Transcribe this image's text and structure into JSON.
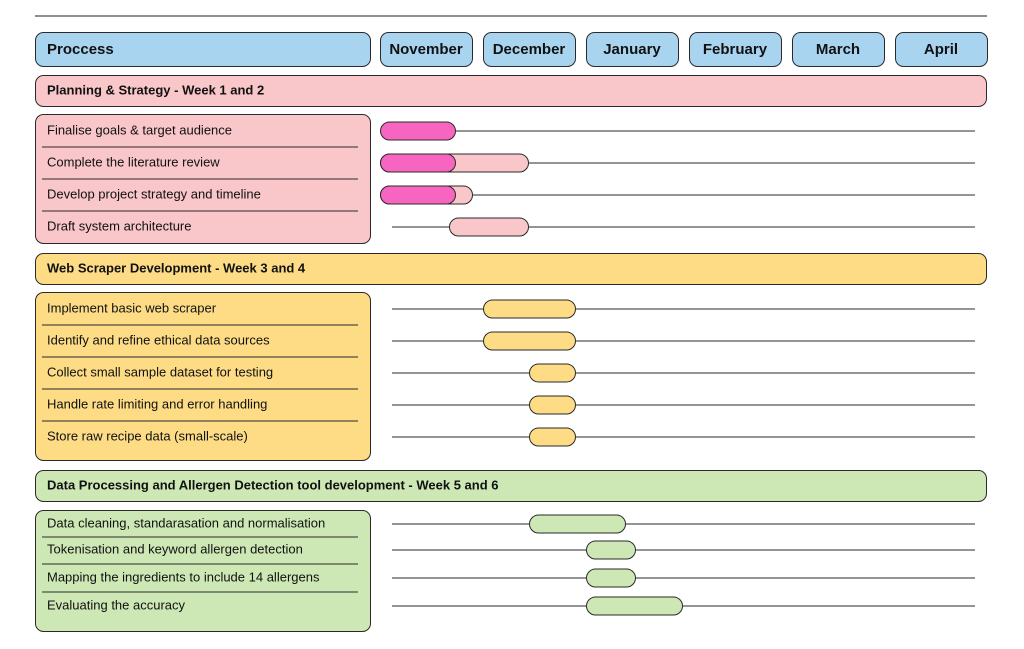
{
  "header": {
    "process_label": "Proccess",
    "months": [
      "November",
      "December",
      "January",
      "February",
      "March",
      "April"
    ]
  },
  "sections": [
    {
      "title": "Planning & Strategy - Week 1 and 2",
      "tasks": [
        "Finalise goals & target audience",
        "Complete the literature review",
        "Develop project strategy and timeline",
        "Draft system architecture"
      ]
    },
    {
      "title": "Web Scraper Development - Week 3 and 4",
      "tasks": [
        "Implement basic web scraper",
        "Identify and refine ethical data sources",
        "Collect small sample dataset for testing",
        "Handle rate limiting and error handling",
        "Store raw recipe data (small-scale)"
      ]
    },
    {
      "title": "Data Processing and Allergen Detection tool development - Week 5 and 6",
      "tasks": [
        "Data cleaning, standarasation and normalisation",
        "Tokenisation and keyword allergen detection",
        "Mapping the ingredients to include 14 allergens",
        "Evaluating the accuracy"
      ]
    }
  ]
}
